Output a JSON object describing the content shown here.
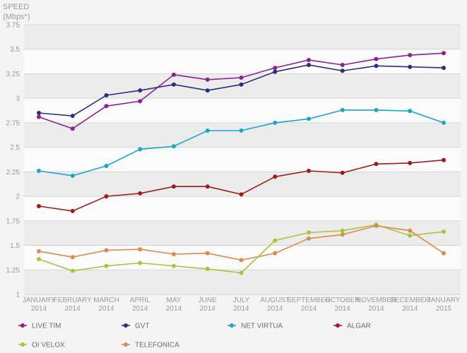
{
  "chart_data": {
    "type": "line",
    "ylabel_line1": "SPEED",
    "ylabel_line2": "(Mbps*)",
    "ylim": [
      1,
      3.75
    ],
    "yticks": [
      1,
      1.25,
      1.5,
      1.75,
      2,
      2.25,
      2.5,
      2.75,
      3,
      3.25,
      3.5,
      3.75
    ],
    "ytick_labels": [
      "1",
      "1.25",
      "1.5",
      "1.75",
      "2",
      "2.25",
      "2.5",
      "2.75",
      "3",
      "3.25",
      "3.5",
      "3.75"
    ],
    "categories": [
      [
        "JANUARY",
        "2014"
      ],
      [
        "FEBRUARY",
        "2014"
      ],
      [
        "MARCH",
        "2014"
      ],
      [
        "APRIL",
        "2014"
      ],
      [
        "MAY",
        "2014"
      ],
      [
        "JUNE",
        "2014"
      ],
      [
        "JULY",
        "2014"
      ],
      [
        "AUGUST",
        "2014"
      ],
      [
        "SEPTEMBER",
        "2014"
      ],
      [
        "OCTOBER",
        "2014"
      ],
      [
        "NOVEMBER",
        "2014"
      ],
      [
        "DECEMBER",
        "2014"
      ],
      [
        "JANUARY",
        "2015"
      ]
    ],
    "grid": "horizontal",
    "legend_position": "bottom",
    "series": [
      {
        "name": "LIVE TIM",
        "color": "#8e1f8e",
        "values": [
          2.81,
          2.69,
          2.92,
          2.97,
          3.24,
          3.19,
          3.21,
          3.31,
          3.39,
          3.34,
          3.4,
          3.44,
          3.46
        ]
      },
      {
        "name": "GVT",
        "color": "#2c2f7a",
        "values": [
          2.85,
          2.82,
          3.03,
          3.08,
          3.14,
          3.08,
          3.14,
          3.27,
          3.34,
          3.28,
          3.33,
          3.32,
          3.31
        ]
      },
      {
        "name": "NET VIRTUA",
        "color": "#1aa6c8",
        "values": [
          2.26,
          2.21,
          2.31,
          2.48,
          2.51,
          2.67,
          2.67,
          2.75,
          2.79,
          2.88,
          2.88,
          2.87,
          2.75
        ]
      },
      {
        "name": "ALGAR",
        "color": "#a01c1c",
        "values": [
          1.9,
          1.85,
          2.0,
          2.03,
          2.1,
          2.1,
          2.02,
          2.2,
          2.26,
          2.24,
          2.33,
          2.34,
          2.37
        ]
      },
      {
        "name": "OI VELOX",
        "color": "#a8c43a",
        "values": [
          1.36,
          1.24,
          1.29,
          1.32,
          1.29,
          1.26,
          1.22,
          1.55,
          1.63,
          1.65,
          1.71,
          1.6,
          1.64
        ]
      },
      {
        "name": "TELEFONICA",
        "color": "#d98a4c",
        "values": [
          1.44,
          1.38,
          1.45,
          1.46,
          1.41,
          1.42,
          1.35,
          1.42,
          1.57,
          1.61,
          1.7,
          1.65,
          1.42
        ]
      }
    ]
  }
}
